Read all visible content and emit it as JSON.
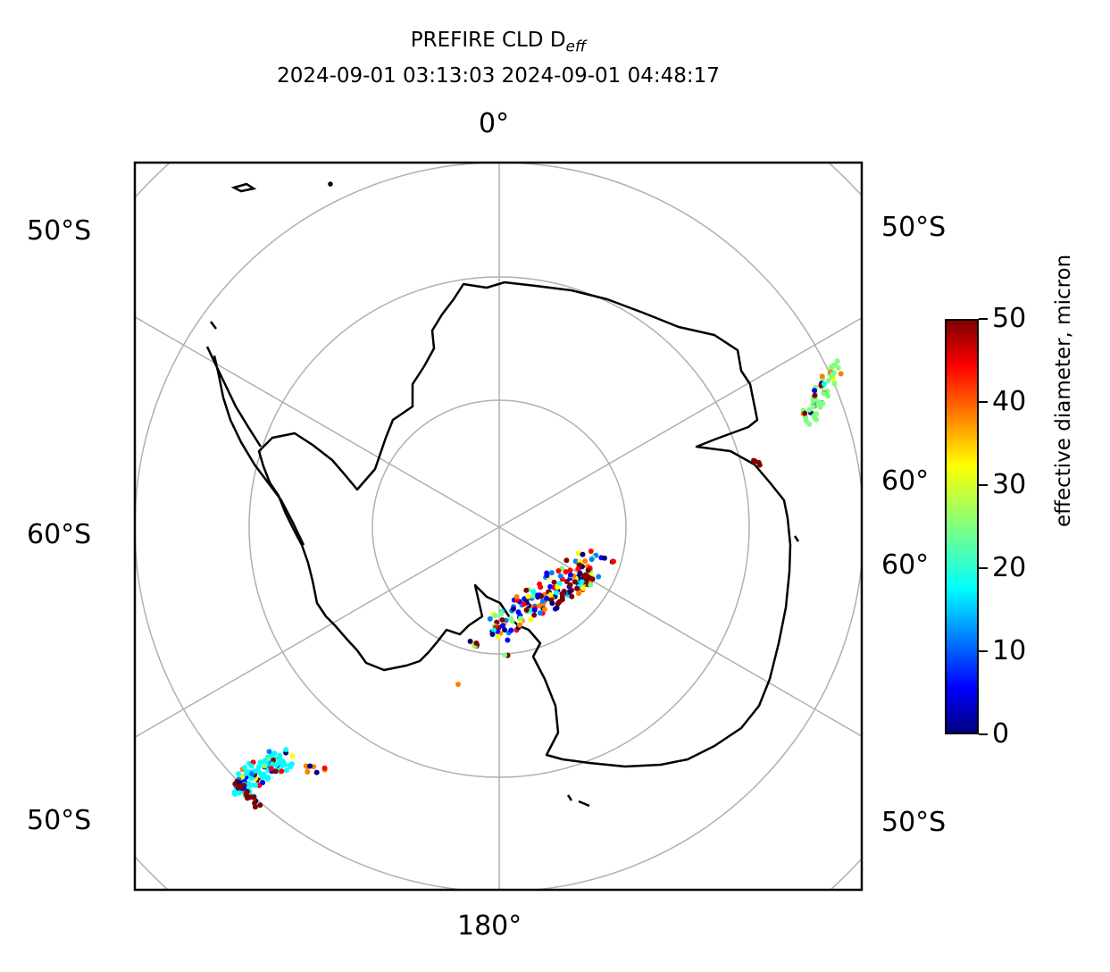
{
  "title": {
    "line1_prefix": "PREFIRE CLD D",
    "line1_sub": "eff",
    "line2": "2024-09-01 03:13:03 2024-09-01 04:48:17"
  },
  "map": {
    "projection": "south-polar-stereographic",
    "longitude_labels": {
      "top": "0°",
      "bottom": "180°"
    },
    "latitude_labels": {
      "left_upper": "50°S",
      "left_middle": "60°S",
      "left_lower": "50°S",
      "right_upper": "50°S",
      "right_mid1": "60°",
      "right_mid2": "60°",
      "right_lower": "50°S"
    },
    "gridline_color": "#b0b0b0",
    "coastline_color": "#000000"
  },
  "colorbar": {
    "label": "effective diameter, micron",
    "min": 0,
    "max": 50,
    "ticks": [
      "0",
      "10",
      "20",
      "30",
      "40",
      "50"
    ],
    "colormap": "jet"
  }
}
